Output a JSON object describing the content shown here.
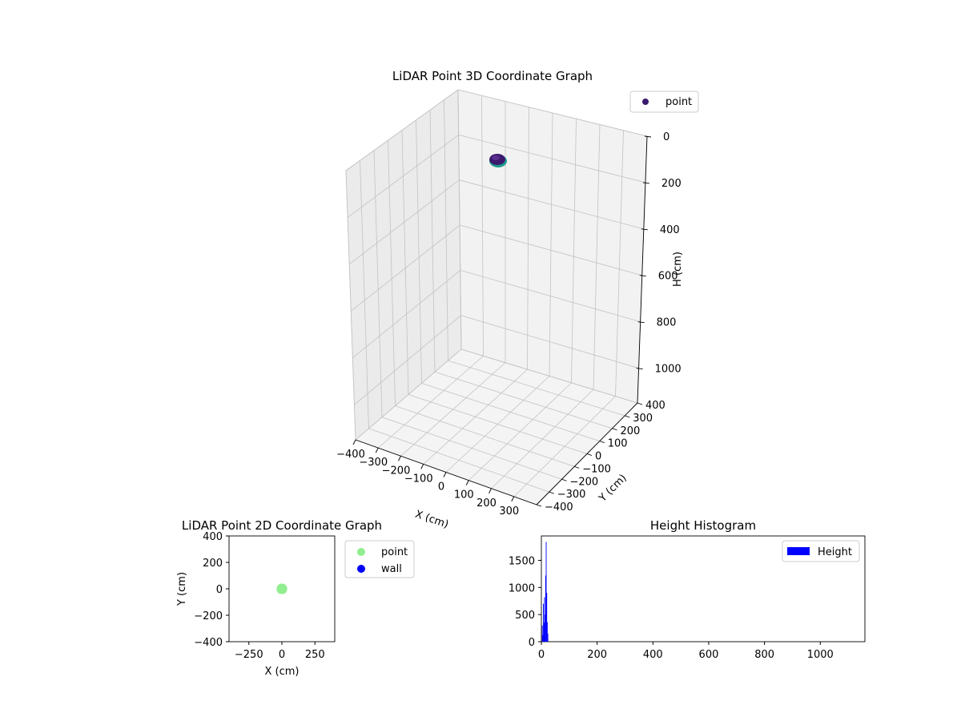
{
  "chart_data": [
    {
      "type": "scatter3d",
      "title": "LiDAR Point 3D Coordinate Graph",
      "xlabel": "X (cm)",
      "ylabel": "Y (cm)",
      "zlabel": "H (cm)",
      "xlim": [
        -400,
        400
      ],
      "ylim": [
        -400,
        400
      ],
      "zlim": [
        0,
        1150
      ],
      "z_inverted": true,
      "xticks": [
        -400,
        -300,
        -200,
        -100,
        0,
        100,
        200,
        300
      ],
      "yticks": [
        -400,
        -300,
        -200,
        -100,
        0,
        100,
        200,
        300,
        400
      ],
      "zticks": [
        0,
        200,
        400,
        600,
        800,
        1000
      ],
      "x_tick_labels": [
        "−400",
        "−300",
        "−200",
        "−100",
        "0",
        "100",
        "200",
        "300"
      ],
      "y_tick_labels": [
        "−400",
        "−300",
        "−200",
        "−100",
        "0",
        "100",
        "200",
        "300",
        "400"
      ],
      "z_tick_labels": [
        "0",
        "200",
        "400",
        "600",
        "800",
        "1000"
      ],
      "legend": [
        {
          "label": "point",
          "color": "#3b1a6e"
        }
      ],
      "legend_position": "top-right",
      "cluster": {
        "x_range": [
          -20,
          20
        ],
        "y_range": [
          -20,
          20
        ],
        "h_range": [
          0,
          30
        ]
      },
      "grid": true
    },
    {
      "type": "scatter",
      "title": "LiDAR Point 2D Coordinate Graph",
      "xlabel": "X (cm)",
      "ylabel": "Y (cm)",
      "xlim": [
        -400,
        400
      ],
      "ylim": [
        -400,
        400
      ],
      "xticks": [
        -250,
        0,
        250
      ],
      "yticks": [
        -400,
        -200,
        0,
        200,
        400
      ],
      "x_tick_labels": [
        "−250",
        "0",
        "250"
      ],
      "y_tick_labels": [
        "−400",
        "−200",
        "0",
        "200",
        "400"
      ],
      "series": [
        {
          "name": "point",
          "color": "#90ee90",
          "points": [
            [
              0,
              0
            ],
            [
              -8,
              4
            ],
            [
              6,
              -5
            ],
            [
              4,
              7
            ],
            [
              -5,
              -6
            ],
            [
              10,
              2
            ],
            [
              -10,
              -1
            ],
            [
              2,
              -10
            ],
            [
              -2,
              9
            ],
            [
              7,
              8
            ],
            [
              -7,
              8
            ],
            [
              8,
              -8
            ],
            [
              -8,
              -8
            ]
          ]
        },
        {
          "name": "wall",
          "color": "#0000ff",
          "points": []
        }
      ],
      "legend_position": "outside-right",
      "grid": false
    },
    {
      "type": "bar",
      "title": "Height Histogram",
      "xlabel": "",
      "ylabel": "",
      "xlim": [
        0,
        1160
      ],
      "ylim": [
        0,
        1950
      ],
      "xticks": [
        0,
        200,
        400,
        600,
        800,
        1000
      ],
      "yticks": [
        0,
        500,
        1000,
        1500
      ],
      "x_tick_labels": [
        "0",
        "200",
        "400",
        "600",
        "800",
        "1000"
      ],
      "y_tick_labels": [
        "0",
        "500",
        "1000",
        "1500"
      ],
      "series": [
        {
          "name": "Height",
          "color": "#0000ff",
          "bins": [
            {
              "x": 2,
              "value": 300
            },
            {
              "x": 4,
              "value": 120
            },
            {
              "x": 6,
              "value": 700
            },
            {
              "x": 8,
              "value": 350
            },
            {
              "x": 10,
              "value": 820
            },
            {
              "x": 12,
              "value": 500
            },
            {
              "x": 14,
              "value": 1220
            },
            {
              "x": 16,
              "value": 1840
            },
            {
              "x": 18,
              "value": 900
            },
            {
              "x": 20,
              "value": 360
            },
            {
              "x": 22,
              "value": 150
            }
          ],
          "bin_width": 2
        }
      ],
      "legend_position": "top-right",
      "grid": false
    }
  ]
}
